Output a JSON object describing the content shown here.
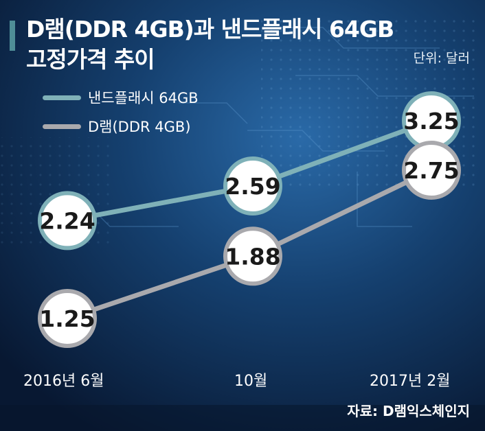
{
  "title_line1": "D램(DDR 4GB)과 낸드플래시 64GB",
  "title_line2": "고정가격 추이",
  "unit": "단위: 달러",
  "source": "자료: D램익스체인지",
  "colors": {
    "nand": "#7fb1b8",
    "dram": "#a9a9ad",
    "bg_dark": "#0b1f44",
    "bg_mid": "#1b4f86",
    "accent_bar": "#4f8e97"
  },
  "chart_data": {
    "type": "line",
    "categories": [
      "2016년 6월",
      "10월",
      "2017년 2월"
    ],
    "series": [
      {
        "name": "낸드플래시 64GB",
        "values": [
          2.24,
          2.59,
          3.25
        ]
      },
      {
        "name": "D램(DDR 4GB)",
        "values": [
          1.25,
          1.88,
          2.75
        ]
      }
    ],
    "value_labels": {
      "nand": [
        "2.24",
        "2.59",
        "3.25"
      ],
      "dram": [
        "1.25",
        "1.88",
        "2.75"
      ]
    },
    "ylim": [
      1.0,
      3.5
    ],
    "grid": false,
    "legend": "top-left"
  }
}
